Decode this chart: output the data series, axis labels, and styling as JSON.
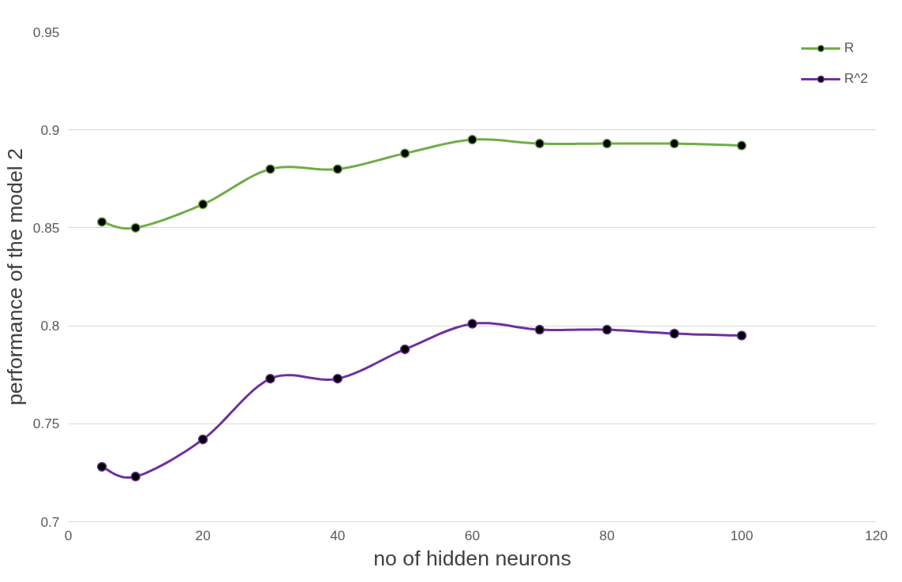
{
  "chart_data": {
    "type": "line",
    "xlabel": "no of hidden neurons",
    "ylabel": "performance of the model 2",
    "x": [
      5,
      10,
      20,
      30,
      40,
      50,
      60,
      70,
      80,
      90,
      100
    ],
    "series": [
      {
        "name": "R",
        "color": "#70ad47",
        "values": [
          0.853,
          0.85,
          0.862,
          0.88,
          0.88,
          0.888,
          0.895,
          0.893,
          0.893,
          0.893,
          0.892
        ]
      },
      {
        "name": "R^2",
        "color": "#7030a0",
        "values": [
          0.728,
          0.723,
          0.742,
          0.773,
          0.773,
          0.788,
          0.801,
          0.798,
          0.798,
          0.796,
          0.795
        ]
      }
    ],
    "xlim": [
      0,
      120
    ],
    "xticks": [
      0,
      20,
      40,
      60,
      80,
      100,
      120
    ],
    "ylim": [
      0.7,
      0.95
    ],
    "yticks": [
      0.7,
      0.75,
      0.8,
      0.85,
      0.9,
      0.95
    ],
    "grid": "y",
    "legend": "top right",
    "marker": "circle",
    "line_style": "solid"
  }
}
